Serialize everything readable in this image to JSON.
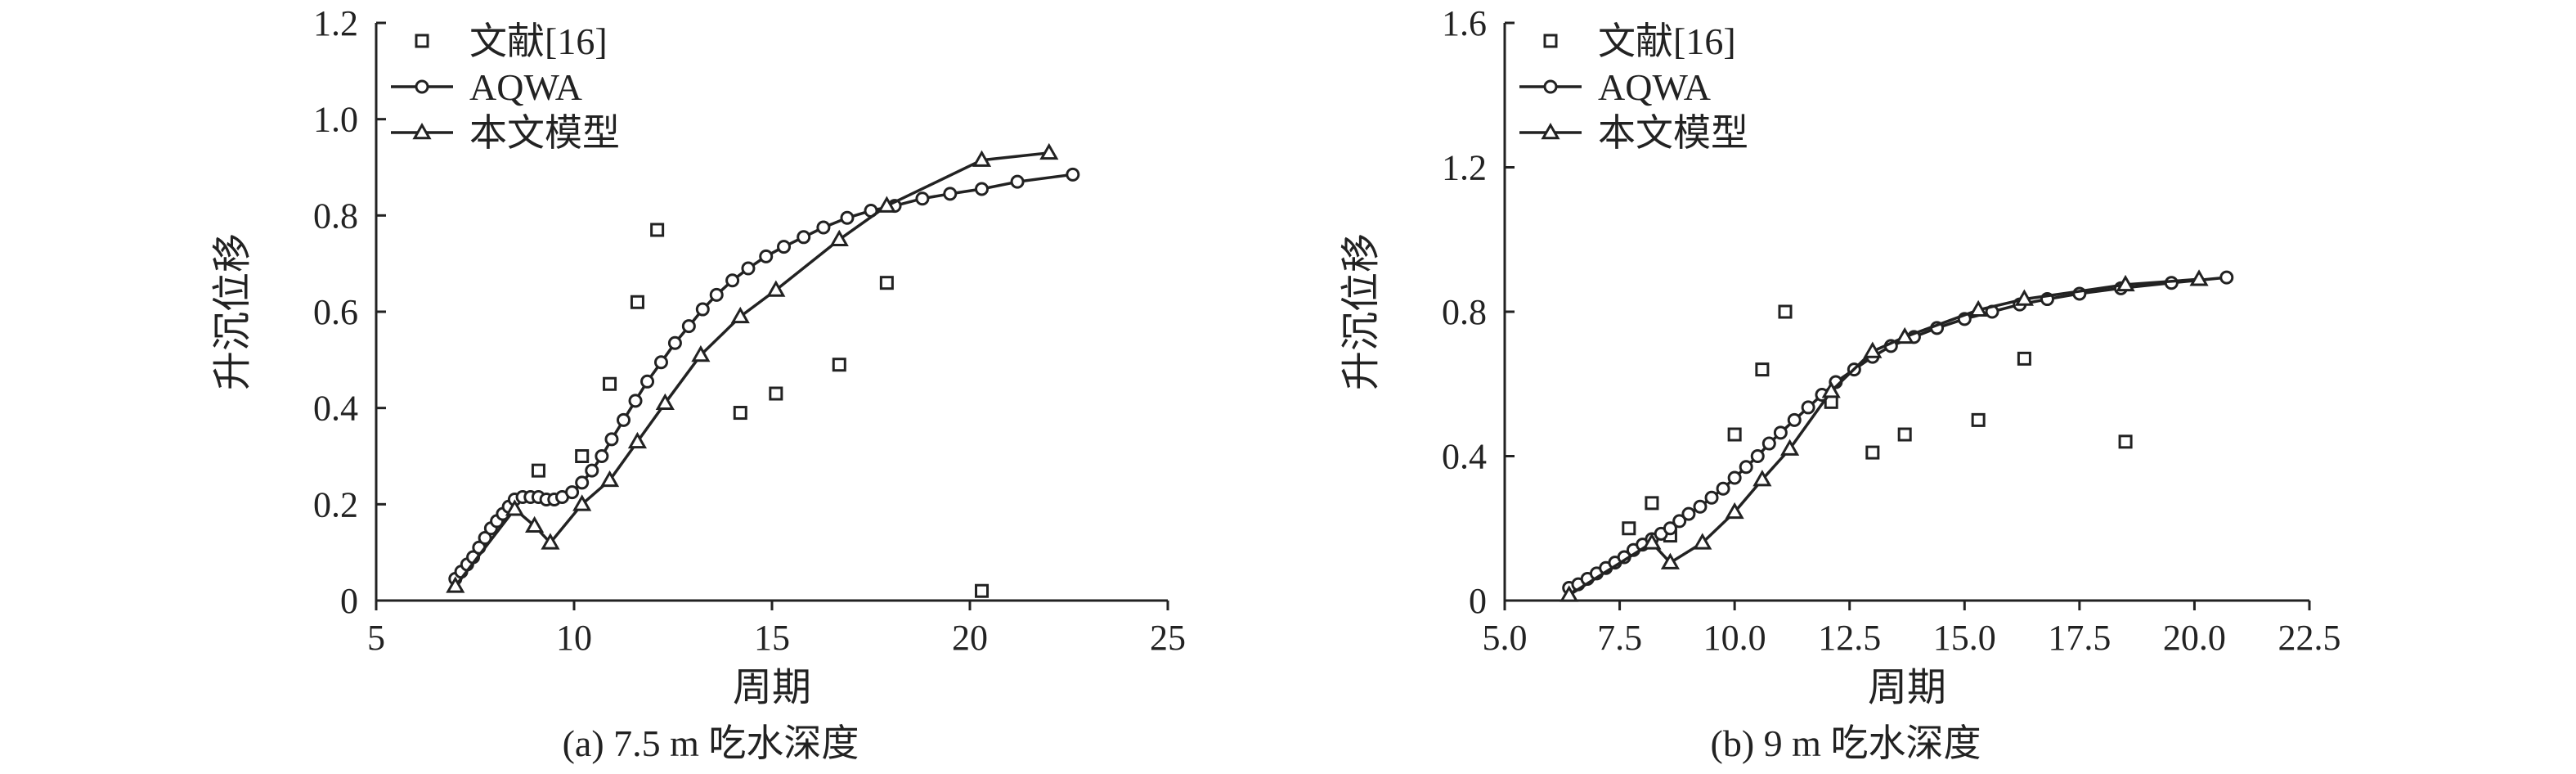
{
  "chart_data": [
    {
      "type": "scatter",
      "caption": "(a) 7.5 m 吃水深度",
      "xlabel": "周期",
      "ylabel": "升沉位移",
      "xlim": [
        5,
        25
      ],
      "ylim": [
        0,
        1.2
      ],
      "xticks": [
        "5",
        "10",
        "15",
        "20",
        "25"
      ],
      "yticks": [
        "0",
        "0.2",
        "0.4",
        "0.6",
        "0.8",
        "1.0",
        "1.2"
      ],
      "legend_position": "top-left",
      "series": [
        {
          "name": "文献[16]",
          "marker": "square",
          "line": false,
          "x": [
            9.1,
            10.2,
            10.9,
            11.6,
            12.1,
            14.2,
            15.1,
            16.7,
            17.9,
            20.3
          ],
          "y": [
            0.27,
            0.3,
            0.45,
            0.62,
            0.77,
            0.39,
            0.43,
            0.49,
            0.66,
            0.02
          ]
        },
        {
          "name": "AQWA",
          "marker": "circle",
          "line": true,
          "x": [
            7.0,
            7.15,
            7.3,
            7.45,
            7.6,
            7.75,
            7.9,
            8.05,
            8.2,
            8.35,
            8.5,
            8.7,
            8.9,
            9.1,
            9.3,
            9.5,
            9.7,
            9.95,
            10.2,
            10.45,
            10.7,
            10.95,
            11.25,
            11.55,
            11.85,
            12.2,
            12.55,
            12.9,
            13.25,
            13.6,
            14.0,
            14.4,
            14.85,
            15.3,
            15.8,
            16.3,
            16.9,
            17.5,
            18.1,
            18.8,
            19.5,
            20.3,
            21.2,
            22.6
          ],
          "y": [
            0.045,
            0.06,
            0.075,
            0.09,
            0.11,
            0.13,
            0.15,
            0.165,
            0.18,
            0.195,
            0.21,
            0.215,
            0.215,
            0.215,
            0.21,
            0.21,
            0.215,
            0.225,
            0.245,
            0.27,
            0.3,
            0.335,
            0.375,
            0.415,
            0.455,
            0.495,
            0.535,
            0.57,
            0.605,
            0.635,
            0.665,
            0.69,
            0.715,
            0.735,
            0.755,
            0.775,
            0.795,
            0.81,
            0.82,
            0.835,
            0.845,
            0.855,
            0.87,
            0.885
          ]
        },
        {
          "name": "本文模型",
          "marker": "triangle",
          "line": true,
          "x": [
            7.0,
            8.5,
            9.0,
            9.4,
            10.2,
            10.9,
            11.6,
            12.3,
            13.2,
            14.2,
            15.1,
            16.7,
            17.9,
            20.3,
            22.0
          ],
          "y": [
            0.03,
            0.19,
            0.155,
            0.12,
            0.2,
            0.25,
            0.33,
            0.41,
            0.51,
            0.59,
            0.645,
            0.75,
            0.82,
            0.915,
            0.93
          ]
        }
      ]
    },
    {
      "type": "scatter",
      "caption": "(b) 9 m 吃水深度",
      "xlabel": "周期",
      "ylabel": "升沉位移",
      "xlim": [
        5.0,
        22.5
      ],
      "ylim": [
        0,
        1.6
      ],
      "xticks": [
        "5.0",
        "7.5",
        "10.0",
        "12.5",
        "15.0",
        "17.5",
        "20.0",
        "22.5"
      ],
      "yticks": [
        "0",
        "0.4",
        "0.8",
        "1.2",
        "1.6"
      ],
      "legend_position": "top-left",
      "series": [
        {
          "name": "文献[16]",
          "marker": "square",
          "line": false,
          "x": [
            7.7,
            8.2,
            8.6,
            10.0,
            10.6,
            11.1,
            12.1,
            13.0,
            13.7,
            15.3,
            16.3,
            18.5
          ],
          "y": [
            0.2,
            0.27,
            0.18,
            0.46,
            0.64,
            0.8,
            0.55,
            0.41,
            0.46,
            0.5,
            0.67,
            0.44
          ]
        },
        {
          "name": "AQWA",
          "marker": "circle",
          "line": true,
          "x": [
            6.4,
            6.6,
            6.8,
            7.0,
            7.2,
            7.4,
            7.6,
            7.8,
            8.0,
            8.2,
            8.4,
            8.6,
            8.8,
            9.0,
            9.25,
            9.5,
            9.75,
            10.0,
            10.25,
            10.5,
            10.75,
            11.0,
            11.3,
            11.6,
            11.9,
            12.2,
            12.6,
            13.0,
            13.4,
            13.9,
            14.4,
            15.0,
            15.6,
            16.2,
            16.8,
            17.5,
            18.4,
            19.5,
            20.7
          ],
          "y": [
            0.035,
            0.045,
            0.06,
            0.075,
            0.09,
            0.105,
            0.12,
            0.14,
            0.155,
            0.17,
            0.185,
            0.2,
            0.22,
            0.24,
            0.26,
            0.285,
            0.31,
            0.34,
            0.37,
            0.4,
            0.435,
            0.465,
            0.5,
            0.535,
            0.57,
            0.605,
            0.64,
            0.675,
            0.705,
            0.73,
            0.755,
            0.78,
            0.8,
            0.82,
            0.835,
            0.85,
            0.865,
            0.88,
            0.895
          ]
        },
        {
          "name": "本文模型",
          "marker": "triangle",
          "line": true,
          "x": [
            6.4,
            8.2,
            8.6,
            9.3,
            10.0,
            10.6,
            11.2,
            12.1,
            13.0,
            13.7,
            15.3,
            16.3,
            18.5,
            20.1
          ],
          "y": [
            0.015,
            0.16,
            0.105,
            0.16,
            0.245,
            0.335,
            0.42,
            0.58,
            0.69,
            0.73,
            0.805,
            0.835,
            0.875,
            0.89
          ]
        }
      ]
    }
  ]
}
